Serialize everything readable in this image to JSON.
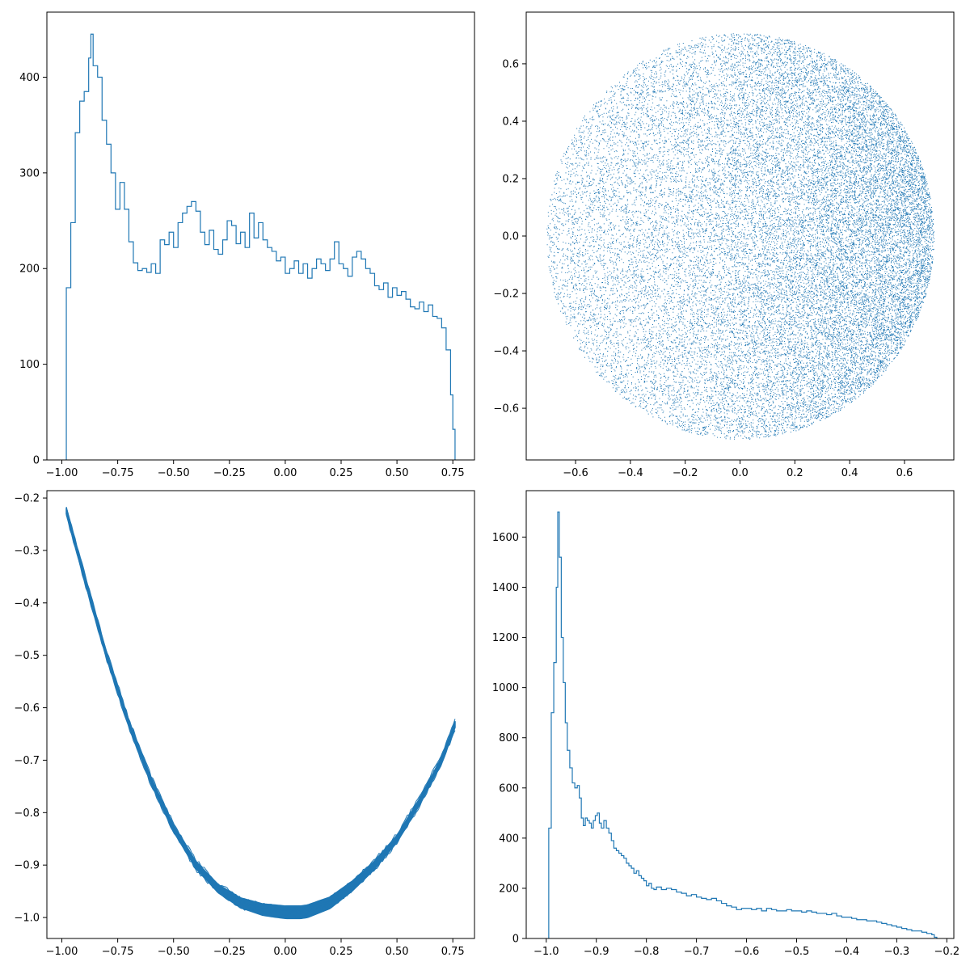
{
  "figure": {
    "colors": {
      "series": "#1f77b4",
      "axes": "#000000",
      "background": "#ffffff"
    }
  },
  "chart_data": [
    {
      "type": "histogram",
      "position": "top-left",
      "histtype": "step",
      "x_range": [
        -0.98,
        0.76
      ],
      "xlim": [
        -1.067,
        0.847
      ],
      "ylim": [
        0,
        468
      ],
      "xticks": [
        -1.0,
        -0.75,
        -0.5,
        -0.25,
        0.0,
        0.25,
        0.5,
        0.75
      ],
      "xtick_labels": [
        "−1.00",
        "−0.75",
        "−0.50",
        "−0.25",
        "0.00",
        "0.25",
        "0.50",
        "0.75"
      ],
      "yticks": [
        0,
        100,
        200,
        300,
        400
      ],
      "ytick_labels": [
        "0",
        "100",
        "200",
        "300",
        "400"
      ],
      "outline": [
        [
          -0.98,
          0
        ],
        [
          -0.98,
          180
        ],
        [
          -0.96,
          248
        ],
        [
          -0.94,
          342
        ],
        [
          -0.92,
          375
        ],
        [
          -0.9,
          385
        ],
        [
          -0.88,
          420
        ],
        [
          -0.87,
          445
        ],
        [
          -0.86,
          412
        ],
        [
          -0.84,
          400
        ],
        [
          -0.82,
          355
        ],
        [
          -0.8,
          330
        ],
        [
          -0.78,
          300
        ],
        [
          -0.76,
          262
        ],
        [
          -0.74,
          290
        ],
        [
          -0.72,
          262
        ],
        [
          -0.7,
          228
        ],
        [
          -0.68,
          206
        ],
        [
          -0.66,
          198
        ],
        [
          -0.64,
          200
        ],
        [
          -0.62,
          196
        ],
        [
          -0.6,
          205
        ],
        [
          -0.58,
          195
        ],
        [
          -0.56,
          230
        ],
        [
          -0.54,
          225
        ],
        [
          -0.52,
          238
        ],
        [
          -0.5,
          222
        ],
        [
          -0.48,
          248
        ],
        [
          -0.46,
          258
        ],
        [
          -0.44,
          265
        ],
        [
          -0.42,
          270
        ],
        [
          -0.4,
          260
        ],
        [
          -0.38,
          238
        ],
        [
          -0.36,
          225
        ],
        [
          -0.34,
          240
        ],
        [
          -0.32,
          220
        ],
        [
          -0.3,
          215
        ],
        [
          -0.28,
          230
        ],
        [
          -0.26,
          250
        ],
        [
          -0.24,
          245
        ],
        [
          -0.22,
          226
        ],
        [
          -0.2,
          238
        ],
        [
          -0.18,
          222
        ],
        [
          -0.16,
          258
        ],
        [
          -0.14,
          232
        ],
        [
          -0.12,
          248
        ],
        [
          -0.1,
          230
        ],
        [
          -0.08,
          222
        ],
        [
          -0.06,
          218
        ],
        [
          -0.04,
          208
        ],
        [
          -0.02,
          212
        ],
        [
          0.0,
          195
        ],
        [
          0.02,
          200
        ],
        [
          0.04,
          208
        ],
        [
          0.06,
          195
        ],
        [
          0.08,
          205
        ],
        [
          0.1,
          190
        ],
        [
          0.12,
          200
        ],
        [
          0.14,
          210
        ],
        [
          0.16,
          205
        ],
        [
          0.18,
          198
        ],
        [
          0.2,
          210
        ],
        [
          0.22,
          228
        ],
        [
          0.24,
          205
        ],
        [
          0.26,
          200
        ],
        [
          0.28,
          192
        ],
        [
          0.3,
          212
        ],
        [
          0.32,
          218
        ],
        [
          0.34,
          210
        ],
        [
          0.36,
          200
        ],
        [
          0.38,
          195
        ],
        [
          0.4,
          182
        ],
        [
          0.42,
          178
        ],
        [
          0.44,
          185
        ],
        [
          0.46,
          170
        ],
        [
          0.48,
          180
        ],
        [
          0.5,
          172
        ],
        [
          0.52,
          176
        ],
        [
          0.54,
          168
        ],
        [
          0.56,
          160
        ],
        [
          0.58,
          158
        ],
        [
          0.6,
          165
        ],
        [
          0.62,
          155
        ],
        [
          0.64,
          162
        ],
        [
          0.66,
          150
        ],
        [
          0.68,
          148
        ],
        [
          0.7,
          138
        ],
        [
          0.72,
          115
        ],
        [
          0.74,
          68
        ],
        [
          0.75,
          32
        ],
        [
          0.76,
          0
        ]
      ]
    },
    {
      "type": "scatter",
      "position": "top-right",
      "marker": "pixel",
      "shape": "disk",
      "radius": 0.707,
      "density": "denser toward the right edge",
      "xlim": [
        -0.78,
        0.78
      ],
      "ylim": [
        -0.78,
        0.78
      ],
      "xticks": [
        -0.6,
        -0.4,
        -0.2,
        0.0,
        0.2,
        0.4,
        0.6
      ],
      "xtick_labels": [
        "−0.6",
        "−0.4",
        "−0.2",
        "0.0",
        "0.2",
        "0.4",
        "0.6"
      ],
      "yticks": [
        -0.6,
        -0.4,
        -0.2,
        0.0,
        0.2,
        0.4,
        0.6
      ],
      "ytick_labels": [
        "−0.6",
        "−0.4",
        "−0.2",
        "0.0",
        "0.2",
        "0.4",
        "0.6"
      ]
    },
    {
      "type": "line",
      "position": "bottom-left",
      "description_of_curve": "band of many overlapping lines",
      "x_range": [
        -0.98,
        0.76
      ],
      "curve_points": [
        [
          -0.98,
          -0.225
        ],
        [
          -0.9,
          -0.35
        ],
        [
          -0.8,
          -0.5
        ],
        [
          -0.7,
          -0.63
        ],
        [
          -0.6,
          -0.74
        ],
        [
          -0.5,
          -0.83
        ],
        [
          -0.4,
          -0.9
        ],
        [
          -0.3,
          -0.945
        ],
        [
          -0.2,
          -0.972
        ],
        [
          -0.1,
          -0.985
        ],
        [
          0.0,
          -0.99
        ],
        [
          0.07,
          -0.99
        ],
        [
          0.1,
          -0.988
        ],
        [
          0.2,
          -0.972
        ],
        [
          0.3,
          -0.94
        ],
        [
          0.4,
          -0.9
        ],
        [
          0.5,
          -0.85
        ],
        [
          0.6,
          -0.78
        ],
        [
          0.7,
          -0.7
        ],
        [
          0.76,
          -0.632
        ]
      ],
      "band_halfwidth": 0.012,
      "xlim": [
        -1.067,
        0.847
      ],
      "ylim": [
        -1.04,
        -0.186
      ],
      "xticks": [
        -1.0,
        -0.75,
        -0.5,
        -0.25,
        0.0,
        0.25,
        0.5,
        0.75
      ],
      "xtick_labels": [
        "−1.00",
        "−0.75",
        "−0.50",
        "−0.25",
        "0.00",
        "0.25",
        "0.50",
        "0.75"
      ],
      "yticks": [
        -1.0,
        -0.9,
        -0.8,
        -0.7,
        -0.6,
        -0.5,
        -0.4,
        -0.3,
        -0.2
      ],
      "ytick_labels": [
        "−1.0",
        "−0.9",
        "−0.8",
        "−0.7",
        "−0.6",
        "−0.5",
        "−0.4",
        "−0.3",
        "−0.2"
      ]
    },
    {
      "type": "histogram",
      "position": "bottom-right",
      "histtype": "step",
      "x_range": [
        -0.995,
        -0.22
      ],
      "xlim": [
        -1.04,
        -0.186
      ],
      "ylim": [
        0,
        1785
      ],
      "xticks": [
        -1.0,
        -0.9,
        -0.8,
        -0.7,
        -0.6,
        -0.5,
        -0.4,
        -0.3,
        -0.2
      ],
      "xtick_labels": [
        "−1.0",
        "−0.9",
        "−0.8",
        "−0.7",
        "−0.6",
        "−0.5",
        "−0.4",
        "−0.3",
        "−0.2"
      ],
      "yticks": [
        0,
        200,
        400,
        600,
        800,
        1000,
        1200,
        1400,
        1600
      ],
      "ytick_labels": [
        "0",
        "200",
        "400",
        "600",
        "800",
        "1000",
        "1200",
        "1400",
        "1600"
      ],
      "outline": [
        [
          -0.995,
          0
        ],
        [
          -0.995,
          440
        ],
        [
          -0.99,
          900
        ],
        [
          -0.985,
          1100
        ],
        [
          -0.98,
          1400
        ],
        [
          -0.977,
          1700
        ],
        [
          -0.974,
          1520
        ],
        [
          -0.97,
          1200
        ],
        [
          -0.966,
          1020
        ],
        [
          -0.962,
          860
        ],
        [
          -0.958,
          750
        ],
        [
          -0.953,
          680
        ],
        [
          -0.948,
          620
        ],
        [
          -0.943,
          600
        ],
        [
          -0.938,
          610
        ],
        [
          -0.934,
          560
        ],
        [
          -0.93,
          480
        ],
        [
          -0.926,
          450
        ],
        [
          -0.922,
          480
        ],
        [
          -0.918,
          470
        ],
        [
          -0.914,
          460
        ],
        [
          -0.91,
          440
        ],
        [
          -0.906,
          470
        ],
        [
          -0.902,
          490
        ],
        [
          -0.898,
          500
        ],
        [
          -0.894,
          460
        ],
        [
          -0.89,
          440
        ],
        [
          -0.885,
          470
        ],
        [
          -0.88,
          440
        ],
        [
          -0.875,
          420
        ],
        [
          -0.87,
          390
        ],
        [
          -0.865,
          360
        ],
        [
          -0.86,
          350
        ],
        [
          -0.855,
          340
        ],
        [
          -0.85,
          330
        ],
        [
          -0.845,
          320
        ],
        [
          -0.84,
          300
        ],
        [
          -0.835,
          290
        ],
        [
          -0.83,
          280
        ],
        [
          -0.825,
          260
        ],
        [
          -0.82,
          270
        ],
        [
          -0.815,
          250
        ],
        [
          -0.81,
          240
        ],
        [
          -0.805,
          230
        ],
        [
          -0.8,
          210
        ],
        [
          -0.795,
          220
        ],
        [
          -0.79,
          200
        ],
        [
          -0.785,
          195
        ],
        [
          -0.78,
          205
        ],
        [
          -0.77,
          195
        ],
        [
          -0.76,
          200
        ],
        [
          -0.75,
          195
        ],
        [
          -0.74,
          185
        ],
        [
          -0.73,
          180
        ],
        [
          -0.72,
          170
        ],
        [
          -0.71,
          175
        ],
        [
          -0.7,
          165
        ],
        [
          -0.69,
          160
        ],
        [
          -0.68,
          155
        ],
        [
          -0.67,
          160
        ],
        [
          -0.66,
          150
        ],
        [
          -0.65,
          140
        ],
        [
          -0.64,
          130
        ],
        [
          -0.63,
          125
        ],
        [
          -0.62,
          115
        ],
        [
          -0.61,
          120
        ],
        [
          -0.6,
          120
        ],
        [
          -0.59,
          115
        ],
        [
          -0.58,
          120
        ],
        [
          -0.57,
          110
        ],
        [
          -0.56,
          120
        ],
        [
          -0.55,
          115
        ],
        [
          -0.54,
          110
        ],
        [
          -0.53,
          110
        ],
        [
          -0.52,
          115
        ],
        [
          -0.51,
          110
        ],
        [
          -0.5,
          110
        ],
        [
          -0.49,
          105
        ],
        [
          -0.48,
          110
        ],
        [
          -0.47,
          105
        ],
        [
          -0.46,
          100
        ],
        [
          -0.45,
          100
        ],
        [
          -0.44,
          95
        ],
        [
          -0.43,
          100
        ],
        [
          -0.42,
          90
        ],
        [
          -0.41,
          85
        ],
        [
          -0.4,
          85
        ],
        [
          -0.39,
          80
        ],
        [
          -0.38,
          75
        ],
        [
          -0.37,
          75
        ],
        [
          -0.36,
          70
        ],
        [
          -0.35,
          70
        ],
        [
          -0.34,
          65
        ],
        [
          -0.33,
          60
        ],
        [
          -0.32,
          55
        ],
        [
          -0.31,
          50
        ],
        [
          -0.3,
          45
        ],
        [
          -0.29,
          40
        ],
        [
          -0.28,
          35
        ],
        [
          -0.27,
          30
        ],
        [
          -0.26,
          30
        ],
        [
          -0.25,
          25
        ],
        [
          -0.24,
          20
        ],
        [
          -0.23,
          15
        ],
        [
          -0.225,
          5
        ],
        [
          -0.22,
          0
        ]
      ]
    }
  ]
}
